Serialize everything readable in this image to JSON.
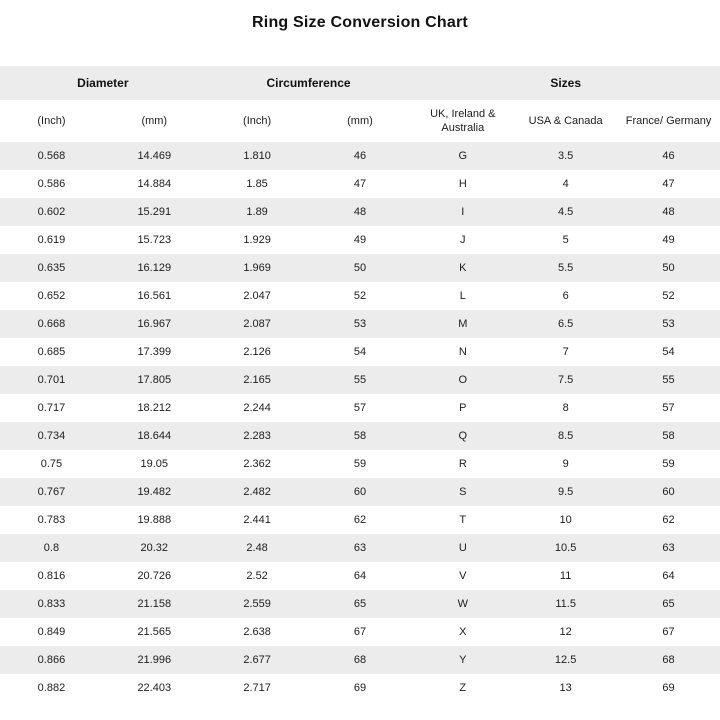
{
  "title": "Ring Size Conversion Chart",
  "colors": {
    "stripe": "#ececec",
    "background": "#ffffff",
    "text": "#1d1d1d"
  },
  "chart_data": {
    "type": "table",
    "title": "Ring Size Conversion Chart",
    "column_groups": [
      {
        "label": "Diameter",
        "span": 2
      },
      {
        "label": "Circumference",
        "span": 2
      },
      {
        "label": "Sizes",
        "span": 3
      }
    ],
    "columns": [
      "(Inch)",
      "(mm)",
      "(Inch)",
      "(mm)",
      "UK, Ireland & Australia",
      "USA & Canada",
      "France/ Germany"
    ],
    "rows": [
      [
        "0.568",
        "14.469",
        "1.810",
        "46",
        "G",
        "3.5",
        "46"
      ],
      [
        "0.586",
        "14.884",
        "1.85",
        "47",
        "H",
        "4",
        "47"
      ],
      [
        "0.602",
        "15.291",
        "1.89",
        "48",
        "I",
        "4.5",
        "48"
      ],
      [
        "0.619",
        "15.723",
        "1.929",
        "49",
        "J",
        "5",
        "49"
      ],
      [
        "0.635",
        "16.129",
        "1.969",
        "50",
        "K",
        "5.5",
        "50"
      ],
      [
        "0.652",
        "16.561",
        "2.047",
        "52",
        "L",
        "6",
        "52"
      ],
      [
        "0.668",
        "16.967",
        "2.087",
        "53",
        "M",
        "6.5",
        "53"
      ],
      [
        "0.685",
        "17.399",
        "2.126",
        "54",
        "N",
        "7",
        "54"
      ],
      [
        "0.701",
        "17.805",
        "2.165",
        "55",
        "O",
        "7.5",
        "55"
      ],
      [
        "0.717",
        "18.212",
        "2.244",
        "57",
        "P",
        "8",
        "57"
      ],
      [
        "0.734",
        "18.644",
        "2.283",
        "58",
        "Q",
        "8.5",
        "58"
      ],
      [
        "0.75",
        "19.05",
        "2.362",
        "59",
        "R",
        "9",
        "59"
      ],
      [
        "0.767",
        "19.482",
        "2.482",
        "60",
        "S",
        "9.5",
        "60"
      ],
      [
        "0.783",
        "19.888",
        "2.441",
        "62",
        "T",
        "10",
        "62"
      ],
      [
        "0.8",
        "20.32",
        "2.48",
        "63",
        "U",
        "10.5",
        "63"
      ],
      [
        "0.816",
        "20.726",
        "2.52",
        "64",
        "V",
        "11",
        "64"
      ],
      [
        "0.833",
        "21.158",
        "2.559",
        "65",
        "W",
        "11.5",
        "65"
      ],
      [
        "0.849",
        "21.565",
        "2.638",
        "67",
        "X",
        "12",
        "67"
      ],
      [
        "0.866",
        "21.996",
        "2.677",
        "68",
        "Y",
        "12.5",
        "68"
      ],
      [
        "0.882",
        "22.403",
        "2.717",
        "69",
        "Z",
        "13",
        "69"
      ]
    ]
  }
}
